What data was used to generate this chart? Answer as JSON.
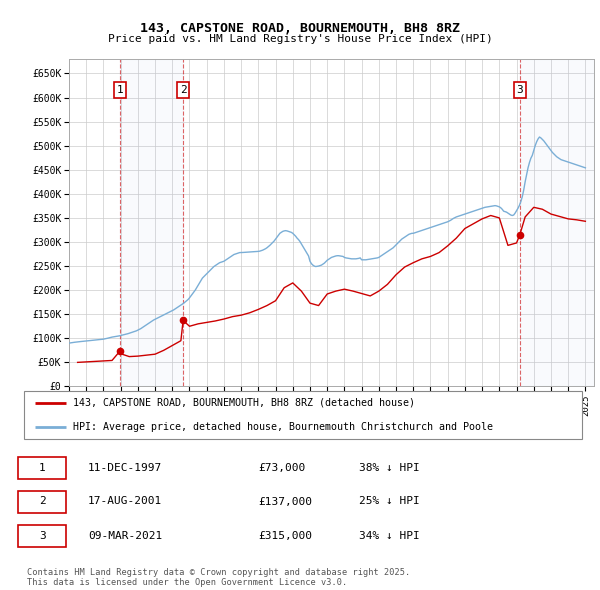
{
  "title": "143, CAPSTONE ROAD, BOURNEMOUTH, BH8 8RZ",
  "subtitle": "Price paid vs. HM Land Registry's House Price Index (HPI)",
  "ylabel_ticks": [
    "£0",
    "£50K",
    "£100K",
    "£150K",
    "£200K",
    "£250K",
    "£300K",
    "£350K",
    "£400K",
    "£450K",
    "£500K",
    "£550K",
    "£600K",
    "£650K"
  ],
  "ytick_vals": [
    0,
    50000,
    100000,
    150000,
    200000,
    250000,
    300000,
    350000,
    400000,
    450000,
    500000,
    550000,
    600000,
    650000
  ],
  "ylim": [
    0,
    680000
  ],
  "xlim_start": 1995.0,
  "xlim_end": 2025.5,
  "hpi_color": "#7aaed6",
  "price_color": "#cc0000",
  "grid_color": "#cccccc",
  "background_color": "#ffffff",
  "sale_dates": [
    1997.95,
    2001.63,
    2021.19
  ],
  "sale_prices": [
    73000,
    137000,
    315000
  ],
  "sale_labels": [
    "1",
    "2",
    "3"
  ],
  "dashed_line_color": "#cc0000",
  "legend_line1": "143, CAPSTONE ROAD, BOURNEMOUTH, BH8 8RZ (detached house)",
  "legend_line2": "HPI: Average price, detached house, Bournemouth Christchurch and Poole",
  "table_data": [
    {
      "label": "1",
      "date": "11-DEC-1997",
      "price": "£73,000",
      "hpi": "38% ↓ HPI"
    },
    {
      "label": "2",
      "date": "17-AUG-2001",
      "price": "£137,000",
      "hpi": "25% ↓ HPI"
    },
    {
      "label": "3",
      "date": "09-MAR-2021",
      "price": "£315,000",
      "hpi": "34% ↓ HPI"
    }
  ],
  "footnote": "Contains HM Land Registry data © Crown copyright and database right 2025.\nThis data is licensed under the Open Government Licence v3.0.",
  "hpi_data_x": [
    1995.0,
    1995.083,
    1995.167,
    1995.25,
    1995.333,
    1995.417,
    1995.5,
    1995.583,
    1995.667,
    1995.75,
    1995.833,
    1995.917,
    1996.0,
    1996.083,
    1996.167,
    1996.25,
    1996.333,
    1996.417,
    1996.5,
    1996.583,
    1996.667,
    1996.75,
    1996.833,
    1996.917,
    1997.0,
    1997.083,
    1997.167,
    1997.25,
    1997.333,
    1997.417,
    1997.5,
    1997.583,
    1997.667,
    1997.75,
    1997.833,
    1997.917,
    1998.0,
    1998.083,
    1998.167,
    1998.25,
    1998.333,
    1998.417,
    1998.5,
    1998.583,
    1998.667,
    1998.75,
    1998.833,
    1998.917,
    1999.0,
    1999.083,
    1999.167,
    1999.25,
    1999.333,
    1999.417,
    1999.5,
    1999.583,
    1999.667,
    1999.75,
    1999.833,
    1999.917,
    2000.0,
    2000.083,
    2000.167,
    2000.25,
    2000.333,
    2000.417,
    2000.5,
    2000.583,
    2000.667,
    2000.75,
    2000.833,
    2000.917,
    2001.0,
    2001.083,
    2001.167,
    2001.25,
    2001.333,
    2001.417,
    2001.5,
    2001.583,
    2001.667,
    2001.75,
    2001.833,
    2001.917,
    2002.0,
    2002.083,
    2002.167,
    2002.25,
    2002.333,
    2002.417,
    2002.5,
    2002.583,
    2002.667,
    2002.75,
    2002.833,
    2002.917,
    2003.0,
    2003.083,
    2003.167,
    2003.25,
    2003.333,
    2003.417,
    2003.5,
    2003.583,
    2003.667,
    2003.75,
    2003.833,
    2003.917,
    2004.0,
    2004.083,
    2004.167,
    2004.25,
    2004.333,
    2004.417,
    2004.5,
    2004.583,
    2004.667,
    2004.75,
    2004.833,
    2004.917,
    2005.0,
    2005.083,
    2005.167,
    2005.25,
    2005.333,
    2005.417,
    2005.5,
    2005.583,
    2005.667,
    2005.75,
    2005.833,
    2005.917,
    2006.0,
    2006.083,
    2006.167,
    2006.25,
    2006.333,
    2006.417,
    2006.5,
    2006.583,
    2006.667,
    2006.75,
    2006.833,
    2006.917,
    2007.0,
    2007.083,
    2007.167,
    2007.25,
    2007.333,
    2007.417,
    2007.5,
    2007.583,
    2007.667,
    2007.75,
    2007.833,
    2007.917,
    2008.0,
    2008.083,
    2008.167,
    2008.25,
    2008.333,
    2008.417,
    2008.5,
    2008.583,
    2008.667,
    2008.75,
    2008.833,
    2008.917,
    2009.0,
    2009.083,
    2009.167,
    2009.25,
    2009.333,
    2009.417,
    2009.5,
    2009.583,
    2009.667,
    2009.75,
    2009.833,
    2009.917,
    2010.0,
    2010.083,
    2010.167,
    2010.25,
    2010.333,
    2010.417,
    2010.5,
    2010.583,
    2010.667,
    2010.75,
    2010.833,
    2010.917,
    2011.0,
    2011.083,
    2011.167,
    2011.25,
    2011.333,
    2011.417,
    2011.5,
    2011.583,
    2011.667,
    2011.75,
    2011.833,
    2011.917,
    2012.0,
    2012.083,
    2012.167,
    2012.25,
    2012.333,
    2012.417,
    2012.5,
    2012.583,
    2012.667,
    2012.75,
    2012.833,
    2012.917,
    2013.0,
    2013.083,
    2013.167,
    2013.25,
    2013.333,
    2013.417,
    2013.5,
    2013.583,
    2013.667,
    2013.75,
    2013.833,
    2013.917,
    2014.0,
    2014.083,
    2014.167,
    2014.25,
    2014.333,
    2014.417,
    2014.5,
    2014.583,
    2014.667,
    2014.75,
    2014.833,
    2014.917,
    2015.0,
    2015.083,
    2015.167,
    2015.25,
    2015.333,
    2015.417,
    2015.5,
    2015.583,
    2015.667,
    2015.75,
    2015.833,
    2015.917,
    2016.0,
    2016.083,
    2016.167,
    2016.25,
    2016.333,
    2016.417,
    2016.5,
    2016.583,
    2016.667,
    2016.75,
    2016.833,
    2016.917,
    2017.0,
    2017.083,
    2017.167,
    2017.25,
    2017.333,
    2017.417,
    2017.5,
    2017.583,
    2017.667,
    2017.75,
    2017.833,
    2017.917,
    2018.0,
    2018.083,
    2018.167,
    2018.25,
    2018.333,
    2018.417,
    2018.5,
    2018.583,
    2018.667,
    2018.75,
    2018.833,
    2018.917,
    2019.0,
    2019.083,
    2019.167,
    2019.25,
    2019.333,
    2019.417,
    2019.5,
    2019.583,
    2019.667,
    2019.75,
    2019.833,
    2019.917,
    2020.0,
    2020.083,
    2020.167,
    2020.25,
    2020.333,
    2020.417,
    2020.5,
    2020.583,
    2020.667,
    2020.75,
    2020.833,
    2020.917,
    2021.0,
    2021.083,
    2021.167,
    2021.25,
    2021.333,
    2021.417,
    2021.5,
    2021.583,
    2021.667,
    2021.75,
    2021.833,
    2021.917,
    2022.0,
    2022.083,
    2022.167,
    2022.25,
    2022.333,
    2022.417,
    2022.5,
    2022.583,
    2022.667,
    2022.75,
    2022.833,
    2022.917,
    2023.0,
    2023.083,
    2023.167,
    2023.25,
    2023.333,
    2023.417,
    2023.5,
    2023.583,
    2023.667,
    2023.75,
    2023.833,
    2023.917,
    2024.0,
    2024.083,
    2024.167,
    2024.25,
    2024.333,
    2024.417,
    2024.5,
    2024.583,
    2024.667,
    2024.75,
    2024.833,
    2024.917,
    2025.0
  ],
  "hpi_data_y": [
    90000,
    90500,
    91000,
    91500,
    91800,
    92200,
    92500,
    92800,
    93200,
    93500,
    93800,
    94000,
    94200,
    94500,
    94800,
    95200,
    95500,
    95800,
    96200,
    96500,
    96800,
    97200,
    97500,
    97800,
    98200,
    98800,
    99500,
    100200,
    101000,
    101800,
    102500,
    103000,
    103500,
    104000,
    104500,
    105000,
    105800,
    106500,
    107200,
    108000,
    108800,
    109500,
    110500,
    111500,
    112500,
    113500,
    114500,
    115500,
    117000,
    118500,
    120000,
    122000,
    124000,
    126000,
    128000,
    130000,
    132000,
    134000,
    136000,
    138000,
    139500,
    141000,
    142500,
    144000,
    145500,
    147000,
    148500,
    150000,
    151500,
    153000,
    154500,
    156000,
    157500,
    159000,
    161000,
    163000,
    165000,
    167000,
    169000,
    171000,
    173000,
    175500,
    178000,
    180500,
    184000,
    188000,
    192000,
    196000,
    200000,
    205000,
    210000,
    215000,
    220000,
    225000,
    228000,
    231000,
    234000,
    237000,
    240000,
    243000,
    246000,
    249000,
    251000,
    253000,
    255000,
    257000,
    258000,
    259000,
    260000,
    262000,
    264000,
    266000,
    268000,
    270000,
    272000,
    274000,
    275000,
    276000,
    277000,
    278000,
    278000,
    278200,
    278400,
    278500,
    278600,
    278800,
    279000,
    279200,
    279400,
    279600,
    279800,
    280000,
    280500,
    281000,
    282000,
    283000,
    284500,
    286000,
    288000,
    290500,
    293000,
    296000,
    299000,
    302000,
    306000,
    310000,
    314000,
    318000,
    320000,
    322000,
    323000,
    323500,
    323000,
    322000,
    321000,
    320000,
    318000,
    315000,
    312000,
    308000,
    305000,
    301000,
    296000,
    291000,
    286000,
    281000,
    276000,
    271000,
    260000,
    255000,
    252000,
    250000,
    249000,
    249500,
    250000,
    251000,
    252000,
    254000,
    256000,
    259000,
    262000,
    264000,
    266000,
    268000,
    269000,
    270000,
    271000,
    271500,
    271500,
    271000,
    270500,
    270000,
    268000,
    267000,
    266500,
    266000,
    265500,
    265000,
    265000,
    265000,
    265000,
    265500,
    266000,
    267000,
    263000,
    263000,
    263000,
    263000,
    263500,
    264000,
    264500,
    265000,
    265500,
    266000,
    266500,
    267000,
    268000,
    270000,
    272000,
    274000,
    276000,
    278000,
    280000,
    282000,
    284000,
    286000,
    288000,
    291000,
    294000,
    297000,
    300000,
    303000,
    306000,
    308000,
    310000,
    312000,
    314000,
    316000,
    317000,
    318000,
    318000,
    319000,
    320000,
    321000,
    322000,
    323000,
    324000,
    325000,
    326000,
    327000,
    328000,
    329000,
    330000,
    331000,
    332000,
    333000,
    334000,
    335000,
    336000,
    337000,
    338000,
    339000,
    340000,
    341000,
    342000,
    343500,
    345000,
    347000,
    349000,
    350500,
    352000,
    353000,
    354000,
    355000,
    356000,
    357000,
    358000,
    359000,
    360000,
    361000,
    362000,
    363000,
    364000,
    365000,
    366000,
    367000,
    368000,
    369000,
    370000,
    371000,
    372000,
    372500,
    373000,
    373500,
    374000,
    374500,
    375000,
    375500,
    375000,
    374000,
    373000,
    371000,
    368000,
    364000,
    363000,
    362000,
    360000,
    358000,
    356000,
    355000,
    356000,
    360000,
    365000,
    370000,
    376000,
    384000,
    394000,
    408000,
    425000,
    440000,
    454000,
    465000,
    474000,
    480000,
    490000,
    500000,
    508000,
    514000,
    518000,
    516000,
    513000,
    510000,
    506000,
    502000,
    498000,
    494000,
    490000,
    486000,
    483000,
    480000,
    477000,
    475000,
    473000,
    471000,
    470000,
    469000,
    468000,
    467000,
    466000,
    465000,
    464000,
    463000,
    462000,
    461000,
    460000,
    459000,
    458000,
    457000,
    456000,
    455000,
    454000
  ],
  "price_data_x": [
    1995.5,
    1996.0,
    1996.5,
    1997.0,
    1997.5,
    1997.95,
    1998.0,
    1998.5,
    1999.0,
    1999.5,
    2000.0,
    2000.5,
    2001.0,
    2001.5,
    2001.63,
    2002.0,
    2002.5,
    2003.0,
    2003.5,
    2004.0,
    2004.5,
    2005.0,
    2005.5,
    2006.0,
    2006.5,
    2007.0,
    2007.5,
    2008.0,
    2008.5,
    2009.0,
    2009.5,
    2010.0,
    2010.5,
    2011.0,
    2011.5,
    2012.0,
    2012.5,
    2013.0,
    2013.5,
    2014.0,
    2014.5,
    2015.0,
    2015.5,
    2016.0,
    2016.5,
    2017.0,
    2017.5,
    2018.0,
    2018.5,
    2019.0,
    2019.5,
    2020.0,
    2020.5,
    2021.0,
    2021.19,
    2021.5,
    2022.0,
    2022.5,
    2023.0,
    2023.5,
    2024.0,
    2024.5,
    2025.0
  ],
  "price_data_y": [
    50000,
    51000,
    52000,
    53000,
    54000,
    73000,
    68000,
    62000,
    63000,
    65000,
    67000,
    75000,
    85000,
    95000,
    137000,
    125000,
    130000,
    133000,
    136000,
    140000,
    145000,
    148000,
    153000,
    160000,
    168000,
    178000,
    205000,
    215000,
    198000,
    173000,
    168000,
    192000,
    198000,
    202000,
    198000,
    193000,
    188000,
    198000,
    212000,
    232000,
    248000,
    257000,
    265000,
    270000,
    278000,
    292000,
    308000,
    328000,
    338000,
    348000,
    355000,
    350000,
    293000,
    298000,
    315000,
    352000,
    372000,
    368000,
    358000,
    353000,
    348000,
    346000,
    343000
  ]
}
